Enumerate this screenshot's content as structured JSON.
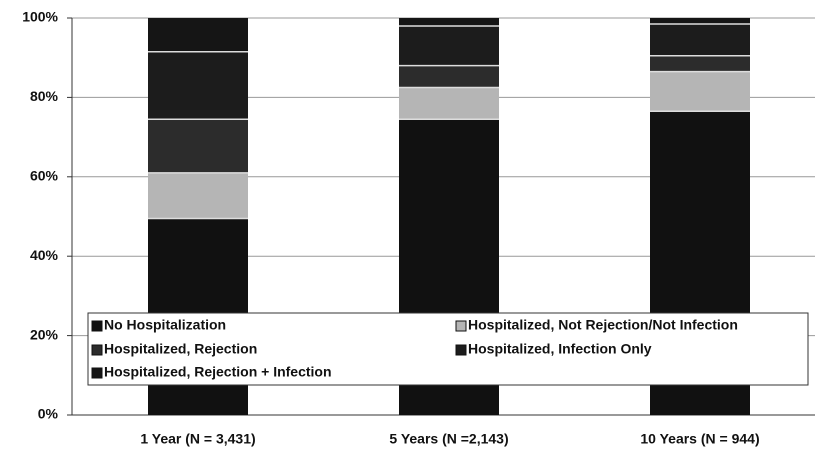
{
  "chart_data": {
    "type": "stacked_bar",
    "categories": [
      "1 Year (N = 3,431)",
      "5 Years (N =2,143)",
      "10 Years (N = 944)"
    ],
    "series": [
      {
        "name": "No Hospitalization",
        "color": "#111111",
        "values": [
          49.5,
          74.5,
          76.5
        ]
      },
      {
        "name": "Hospitalized, Not Rejection/Not Infection",
        "color": "#b5b5b5",
        "values": [
          11.5,
          8,
          10
        ]
      },
      {
        "name": "Hospitalized, Rejection",
        "color": "#2c2c2c",
        "values": [
          13.5,
          5.5,
          4
        ]
      },
      {
        "name": "Hospitalized, Infection Only",
        "color": "#1c1c1c",
        "values": [
          17,
          10,
          8
        ]
      },
      {
        "name": "Hospitalized, Rejection + Infection",
        "color": "#151515",
        "values": [
          8.5,
          2,
          1.5
        ]
      }
    ],
    "ylim": [
      0,
      100
    ],
    "yticks": [
      {
        "value": 0,
        "label": "0%"
      },
      {
        "value": 20,
        "label": "20%"
      },
      {
        "value": 40,
        "label": "40%"
      },
      {
        "value": 60,
        "label": "60%"
      },
      {
        "value": 80,
        "label": "80%"
      },
      {
        "value": 100,
        "label": "100%"
      }
    ],
    "grid": true,
    "legend": "bottom"
  }
}
